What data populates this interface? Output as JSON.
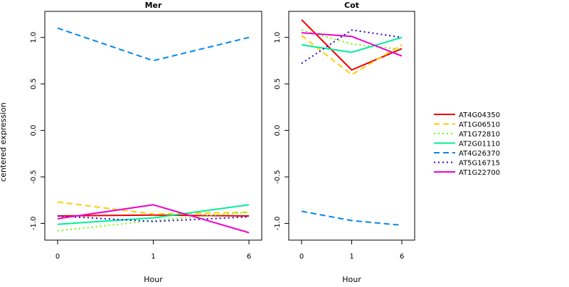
{
  "chart_data": {
    "type": "line",
    "ylabel": "centered expression",
    "yticks": [
      -1.0,
      -0.5,
      0.0,
      0.5,
      1.0
    ],
    "ytick_labels": [
      "-1.0",
      "-0.5",
      "0.0",
      "0.5",
      "1.0"
    ],
    "legend_position": "right",
    "series_styles": [
      {
        "name": "AT4G04350",
        "color": "#ee0000",
        "dash": "solid"
      },
      {
        "name": "AT1G06510",
        "color": "#ffcc00",
        "dash": "dashed"
      },
      {
        "name": "AT1G72810",
        "color": "#66ff00",
        "dash": "dotted"
      },
      {
        "name": "AT2G01110",
        "color": "#00ee99",
        "dash": "solid"
      },
      {
        "name": "AT4G26370",
        "color": "#0088ee",
        "dash": "dashed"
      },
      {
        "name": "AT5G16715",
        "color": "#3300cc",
        "dash": "dotted"
      },
      {
        "name": "AT1G22700",
        "color": "#ee00cc",
        "dash": "solid"
      }
    ],
    "panels": [
      {
        "title": "Mer",
        "xlabel": "Hour",
        "x": [
          "0",
          "1",
          "6"
        ],
        "ylim": [
          -1.18,
          1.28
        ],
        "series": [
          {
            "name": "AT4G04350",
            "values": [
              -0.92,
              -0.91,
              -0.92
            ]
          },
          {
            "name": "AT1G06510",
            "values": [
              -0.77,
              -0.9,
              -0.88
            ]
          },
          {
            "name": "AT1G72810",
            "values": [
              -1.08,
              -0.97,
              -0.88
            ]
          },
          {
            "name": "AT2G01110",
            "values": [
              -1.01,
              -0.94,
              -0.8
            ]
          },
          {
            "name": "AT4G26370",
            "values": [
              1.1,
              0.75,
              1.0
            ]
          },
          {
            "name": "AT5G16715",
            "values": [
              -0.92,
              -0.98,
              -0.93
            ]
          },
          {
            "name": "AT1G22700",
            "values": [
              -0.95,
              -0.8,
              -1.1
            ]
          }
        ]
      },
      {
        "title": "Cot",
        "xlabel": "Hour",
        "x": [
          "0",
          "1",
          "6"
        ],
        "ylim": [
          -1.18,
          1.28
        ],
        "series": [
          {
            "name": "AT4G04350",
            "values": [
              1.19,
              0.65,
              0.88
            ]
          },
          {
            "name": "AT1G06510",
            "values": [
              1.02,
              0.6,
              0.92
            ]
          },
          {
            "name": "AT1G72810",
            "values": [
              1.08,
              0.93,
              0.87
            ]
          },
          {
            "name": "AT2G01110",
            "values": [
              0.92,
              0.84,
              1.0
            ]
          },
          {
            "name": "AT4G26370",
            "values": [
              -0.87,
              -0.97,
              -1.02
            ]
          },
          {
            "name": "AT5G16715",
            "values": [
              0.72,
              1.08,
              1.0
            ]
          },
          {
            "name": "AT1G22700",
            "values": [
              1.05,
              1.01,
              0.8
            ]
          }
        ]
      }
    ]
  }
}
